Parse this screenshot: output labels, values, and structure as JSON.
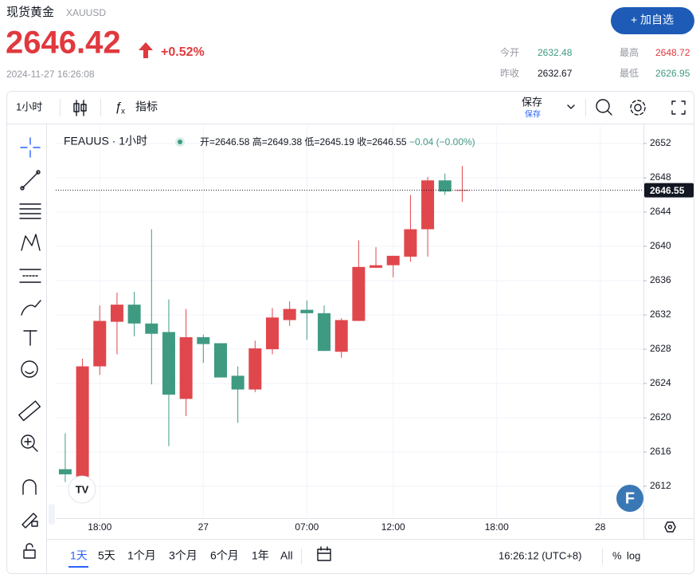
{
  "header": {
    "name": "现货黄金",
    "symbol": "XAUUSD",
    "price": "2646.42",
    "change": "+0.52%",
    "datetime": "2024-11-27 16:26:08",
    "button": "+ 加自选"
  },
  "stats": [
    {
      "label": "今开",
      "value": "2632.48"
    },
    {
      "label": "最高",
      "value": "2648.72"
    },
    {
      "label": "昨收",
      "value": "2632.67"
    },
    {
      "label": "最低",
      "value": "2626.95"
    }
  ],
  "toolbar": {
    "interval": "1小时",
    "indicators": "指标",
    "save": "保存",
    "save_sub": "保存"
  },
  "chart_data": {
    "type": "candlestick",
    "title": "FEAUUS · 1小时",
    "legend": [
      "开=2646.58",
      "高=2649.38",
      "低=2645.19",
      "收=2646.55",
      "−0.04 (−0.00%)"
    ],
    "open": [
      2613.4,
      2626.0,
      2631.3,
      2633.2,
      2631.0,
      2629.8,
      2622.7,
      2629.4,
      2628.6,
      2624.7,
      2623.3,
      2628.1,
      2631.7,
      2632.7,
      2632.2,
      2627.8,
      2631.4,
      2637.6,
      2637.8,
      2638.9,
      2642.0,
      2647.7,
      2646.4,
      2646.58
    ],
    "high": [
      2618.2,
      2626.9,
      2633.1,
      2634.6,
      2634.7,
      2642.0,
      2633.8,
      2632.7,
      2629.7,
      2628.7,
      2626.0,
      2629.0,
      2632.8,
      2633.6,
      2633.7,
      2633.1,
      2631.6,
      2640.7,
      2639.9,
      2638.9,
      2646.0,
      2648.1,
      2648.5,
      2649.38
    ],
    "low": [
      2612.5,
      2612.5,
      2625.0,
      2627.4,
      2629.5,
      2623.9,
      2616.7,
      2620.2,
      2626.4,
      2624.7,
      2619.4,
      2623.0,
      2627.4,
      2630.7,
      2629.1,
      2627.8,
      2627.0,
      2631.3,
      2637.5,
      2636.4,
      2638.2,
      2638.8,
      2646.0,
      2645.19
    ],
    "close": [
      2614.0,
      2613.1,
      2626.0,
      2631.2,
      2633.2,
      2631.0,
      2630.0,
      2622.2,
      2629.4,
      2628.7,
      2624.9,
      2623.3,
      2628.0,
      2631.4,
      2632.6,
      2632.2,
      2627.7,
      2631.3,
      2637.5,
      2637.8,
      2638.8,
      2642.0,
      2647.7,
      2646.55
    ],
    "up_color": "#3f9a82",
    "down_color": "#e0474c",
    "last_price": 2646.55,
    "ylim": [
      2608.28,
      2654.05
    ],
    "yticks": [
      2612,
      2616,
      2620,
      2624,
      2628,
      2632,
      2636,
      2640,
      2644,
      2648,
      2652
    ],
    "xlim": [
      -0.55,
      33.5
    ],
    "xticks": [
      {
        "value": 2,
        "label": "18:00"
      },
      {
        "value": 8,
        "label": "27"
      },
      {
        "value": 14,
        "label": "07:00"
      },
      {
        "value": 19,
        "label": "12:00"
      },
      {
        "value": 25,
        "label": "18:00"
      },
      {
        "value": 31,
        "label": "28"
      }
    ],
    "grid": true
  },
  "range_buttons": [
    "1天",
    "5天",
    "1个月",
    "3个月",
    "6个月",
    "1年",
    "All"
  ],
  "clock": "16:26:12 (UTC+8)",
  "scale_buttons": [
    "%",
    "log"
  ]
}
